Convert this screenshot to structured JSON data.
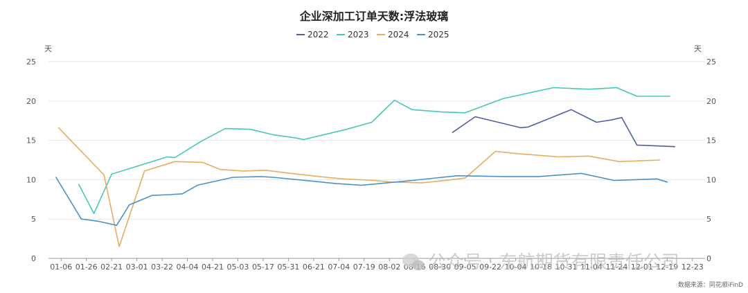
{
  "chart_data": {
    "type": "line",
    "title": "企业深加工订单天数:浮法玻璃",
    "y_unit_left": "天",
    "y_unit_right": "天",
    "ylim": [
      0,
      25
    ],
    "yticks": [
      0,
      5,
      10,
      15,
      20,
      25
    ],
    "x_labels": [
      "01-06",
      "01-26",
      "02-21",
      "03-01",
      "03-22",
      "04-04",
      "04-21",
      "05-03",
      "05-17",
      "05-31",
      "06-21",
      "07-04",
      "07-19",
      "08-02",
      "08-16",
      "08-30",
      "09-05",
      "09-22",
      "10-04",
      "10-18",
      "10-31",
      "11-04",
      "11-24",
      "12-01",
      "12-19",
      "12-23"
    ],
    "legend_position": "top-center",
    "grid": true,
    "series": [
      {
        "name": "2022",
        "color": "#4f5fa0",
        "points": [
          [
            15.5,
            16.0
          ],
          [
            16.4,
            18.0
          ],
          [
            18.2,
            16.6
          ],
          [
            18.5,
            16.7
          ],
          [
            20.2,
            18.9
          ],
          [
            21.2,
            17.3
          ],
          [
            21.8,
            17.6
          ],
          [
            22.2,
            17.9
          ],
          [
            22.8,
            14.4
          ],
          [
            24.3,
            14.2
          ]
        ]
      },
      {
        "name": "2023",
        "color": "#48c6b9",
        "points": [
          [
            0.7,
            9.4
          ],
          [
            1.3,
            5.7
          ],
          [
            2.0,
            10.7
          ],
          [
            2.6,
            11.3
          ],
          [
            4.2,
            12.9
          ],
          [
            4.5,
            12.8
          ],
          [
            5.5,
            14.8
          ],
          [
            6.5,
            16.5
          ],
          [
            7.5,
            16.4
          ],
          [
            8.4,
            15.7
          ],
          [
            9.3,
            15.3
          ],
          [
            9.6,
            15.1
          ],
          [
            11.3,
            16.4
          ],
          [
            12.3,
            17.3
          ],
          [
            13.2,
            20.1
          ],
          [
            13.9,
            18.9
          ],
          [
            15.1,
            18.6
          ],
          [
            16.0,
            18.5
          ],
          [
            17.5,
            20.3
          ],
          [
            19.5,
            21.7
          ],
          [
            20.9,
            21.5
          ],
          [
            22.0,
            21.7
          ],
          [
            22.8,
            20.6
          ],
          [
            24.1,
            20.6
          ]
        ]
      },
      {
        "name": "2024",
        "color": "#e5ad5c",
        "points": [
          [
            -0.1,
            16.6
          ],
          [
            1.7,
            10.6
          ],
          [
            2.3,
            1.5
          ],
          [
            3.3,
            11.1
          ],
          [
            4.5,
            12.3
          ],
          [
            5.6,
            12.2
          ],
          [
            6.3,
            11.3
          ],
          [
            7.2,
            11.1
          ],
          [
            8.1,
            11.2
          ],
          [
            9.1,
            10.8
          ],
          [
            10.5,
            10.3
          ],
          [
            11.2,
            10.1
          ],
          [
            12.4,
            9.9
          ],
          [
            13.1,
            9.7
          ],
          [
            14.3,
            9.6
          ],
          [
            14.9,
            9.8
          ],
          [
            16.0,
            10.2
          ],
          [
            17.2,
            13.6
          ],
          [
            18.1,
            13.3
          ],
          [
            19.7,
            12.9
          ],
          [
            20.9,
            13.0
          ],
          [
            22.1,
            12.3
          ],
          [
            23.7,
            12.5
          ]
        ]
      },
      {
        "name": "2025",
        "color": "#4a91c8",
        "points": [
          [
            -0.2,
            10.3
          ],
          [
            0.8,
            5.0
          ],
          [
            1.5,
            4.7
          ],
          [
            2.2,
            4.2
          ],
          [
            2.7,
            6.8
          ],
          [
            3.6,
            8.0
          ],
          [
            4.3,
            8.1
          ],
          [
            4.8,
            8.2
          ],
          [
            5.4,
            9.3
          ],
          [
            6.8,
            10.3
          ],
          [
            7.9,
            10.4
          ],
          [
            8.4,
            10.3
          ],
          [
            10.0,
            9.8
          ],
          [
            10.9,
            9.5
          ],
          [
            11.9,
            9.3
          ],
          [
            12.6,
            9.5
          ],
          [
            13.9,
            9.9
          ],
          [
            15.7,
            10.5
          ],
          [
            17.6,
            10.4
          ],
          [
            18.9,
            10.4
          ],
          [
            20.6,
            10.8
          ],
          [
            21.9,
            9.9
          ],
          [
            23.6,
            10.1
          ],
          [
            24.0,
            9.7
          ]
        ]
      }
    ]
  },
  "watermark": "公众号 · 东航期货有限责任公司",
  "source": "数据来源：同花顺iFinD"
}
